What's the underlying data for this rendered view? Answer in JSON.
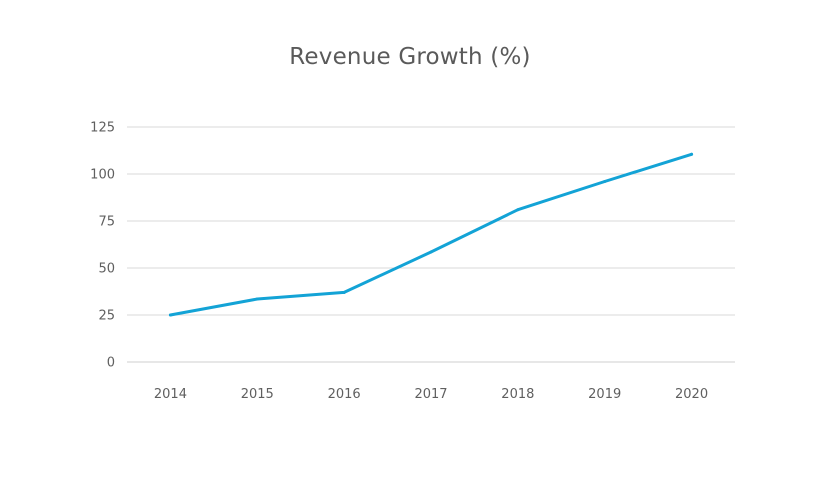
{
  "chart_data": {
    "type": "line",
    "title": "Revenue Growth (%)",
    "xlabel": "",
    "ylabel": "",
    "categories": [
      "2014",
      "2015",
      "2016",
      "2017",
      "2018",
      "2019",
      "2020"
    ],
    "series": [
      {
        "values": [
          25,
          33.5,
          37,
          58.5,
          81,
          96,
          110.5
        ],
        "color": "#13a3d6"
      }
    ],
    "ylim": [
      0,
      125
    ],
    "yticks": [
      0,
      25,
      50,
      75,
      100,
      125
    ],
    "grid": true,
    "legend": "none"
  }
}
